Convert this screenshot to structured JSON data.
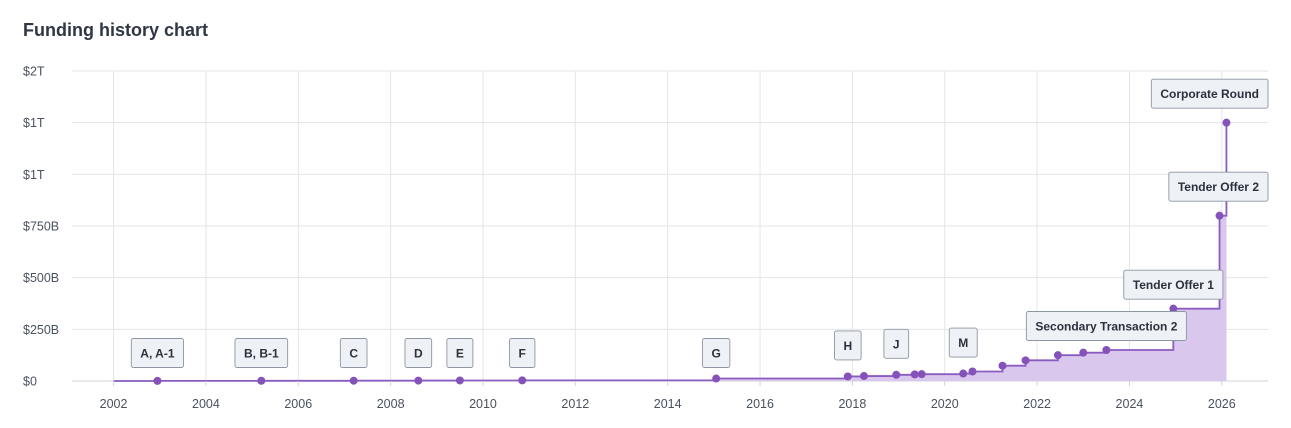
{
  "page": {
    "title": "Funding history chart"
  },
  "chart_data": {
    "type": "area",
    "title": "Funding history chart",
    "xlabel": "",
    "ylabel": "",
    "x_range": [
      2001.1,
      2027.0
    ],
    "ylim": [
      0,
      1500
    ],
    "y_unit": "billion USD",
    "grid": true,
    "y_ticks": [
      {
        "value": 0,
        "label": "$0"
      },
      {
        "value": 250,
        "label": "$250B"
      },
      {
        "value": 500,
        "label": "$500B"
      },
      {
        "value": 750,
        "label": "$750B"
      },
      {
        "value": 1000,
        "label": "$1T"
      },
      {
        "value": 1250,
        "label": "$1T"
      },
      {
        "value": 1500,
        "label": "$2T"
      }
    ],
    "x_ticks": [
      {
        "value": 2002,
        "label": "2002"
      },
      {
        "value": 2004,
        "label": "2004"
      },
      {
        "value": 2006,
        "label": "2006"
      },
      {
        "value": 2008,
        "label": "2008"
      },
      {
        "value": 2010,
        "label": "2010"
      },
      {
        "value": 2012,
        "label": "2012"
      },
      {
        "value": 2014,
        "label": "2014"
      },
      {
        "value": 2016,
        "label": "2016"
      },
      {
        "value": 2018,
        "label": "2018"
      },
      {
        "value": 2020,
        "label": "2020"
      },
      {
        "value": 2022,
        "label": "2022"
      },
      {
        "value": 2024,
        "label": "2024"
      },
      {
        "value": 2026,
        "label": "2026"
      }
    ],
    "step_start": 2002.0,
    "points": [
      {
        "x": 2002.95,
        "y": 0.5,
        "label": "A, A-1"
      },
      {
        "x": 2005.2,
        "y": 1,
        "label": "B, B-1"
      },
      {
        "x": 2007.2,
        "y": 1.5,
        "label": "C"
      },
      {
        "x": 2008.6,
        "y": 2,
        "label": "D"
      },
      {
        "x": 2009.5,
        "y": 2.5,
        "label": "E"
      },
      {
        "x": 2010.85,
        "y": 3,
        "label": "F"
      },
      {
        "x": 2015.05,
        "y": 12,
        "label": "G"
      },
      {
        "x": 2017.9,
        "y": 22,
        "label": "H"
      },
      {
        "x": 2018.25,
        "y": 24,
        "label": ""
      },
      {
        "x": 2018.95,
        "y": 30,
        "label": "J"
      },
      {
        "x": 2019.35,
        "y": 32,
        "label": ""
      },
      {
        "x": 2019.5,
        "y": 33,
        "label": ""
      },
      {
        "x": 2020.4,
        "y": 36,
        "label": "M"
      },
      {
        "x": 2020.6,
        "y": 46,
        "label": ""
      },
      {
        "x": 2021.25,
        "y": 74,
        "label": ""
      },
      {
        "x": 2021.75,
        "y": 100,
        "label": ""
      },
      {
        "x": 2022.45,
        "y": 125,
        "label": ""
      },
      {
        "x": 2023.0,
        "y": 137,
        "label": ""
      },
      {
        "x": 2023.5,
        "y": 150,
        "label": "Secondary Transaction 2"
      },
      {
        "x": 2024.95,
        "y": 350,
        "label": "Tender Offer 1"
      },
      {
        "x": 2025.95,
        "y": 800,
        "label": "Tender Offer 2"
      },
      {
        "x": 2026.1,
        "y": 1250,
        "label": "Corporate Round"
      }
    ],
    "colors": {
      "line": "#8a5bc1",
      "area": "#d9c7ee",
      "point": "#8452b8",
      "label_bg": "#eef1f5",
      "label_border": "#8e96a3",
      "grid": "#e3e5ea"
    }
  }
}
